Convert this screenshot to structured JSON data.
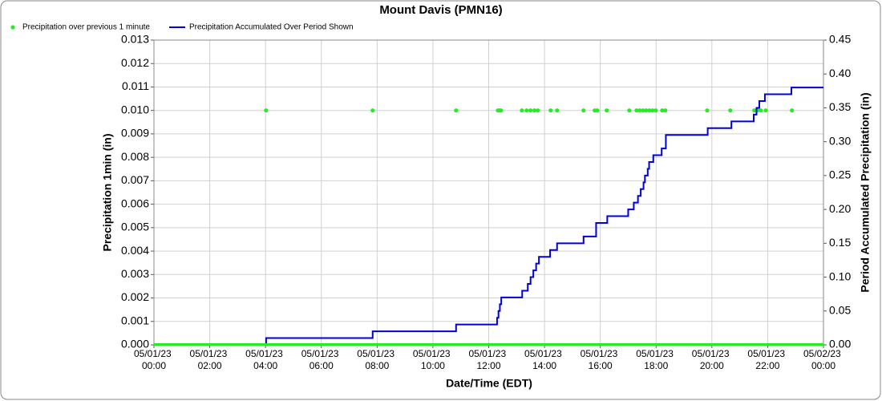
{
  "chart_data": {
    "type": "scatter",
    "title": "Mount Davis (PMN16)",
    "x_label": "Date/Time (EDT)",
    "y_label": "Precipitation 1min (in)",
    "y2_label": "Period Accumulated Precipitation (in)",
    "xlim": [
      0,
      24
    ],
    "xticks": [
      {
        "value": 0,
        "label": "05/01/23 00:00"
      },
      {
        "value": 2,
        "label": "05/01/23 02:00"
      },
      {
        "value": 4,
        "label": "05/01/23 04:00"
      },
      {
        "value": 6,
        "label": "05/01/23 06:00"
      },
      {
        "value": 8,
        "label": "05/01/23 08:00"
      },
      {
        "value": 10,
        "label": "05/01/23 10:00"
      },
      {
        "value": 12,
        "label": "05/01/23 12:00"
      },
      {
        "value": 14,
        "label": "05/01/23 14:00"
      },
      {
        "value": 16,
        "label": "05/01/23 16:00"
      },
      {
        "value": 18,
        "label": "05/01/23 18:00"
      },
      {
        "value": 20,
        "label": "05/01/23 20:00"
      },
      {
        "value": 22,
        "label": "05/01/23 22:00"
      },
      {
        "value": 24,
        "label": "05/02/23 00:00"
      }
    ],
    "ylim": [
      0,
      0.013
    ],
    "yticks": [
      {
        "value": 0,
        "label": "0.000"
      },
      {
        "value": 0.001,
        "label": "0.001"
      },
      {
        "value": 0.002,
        "label": "0.002"
      },
      {
        "value": 0.003,
        "label": "0.003"
      },
      {
        "value": 0.004,
        "label": "0.004"
      },
      {
        "value": 0.005,
        "label": "0.005"
      },
      {
        "value": 0.006,
        "label": "0.006"
      },
      {
        "value": 0.007,
        "label": "0.007"
      },
      {
        "value": 0.008,
        "label": "0.008"
      },
      {
        "value": 0.009,
        "label": "0.009"
      },
      {
        "value": 0.01,
        "label": "0.010"
      },
      {
        "value": 0.011,
        "label": "0.011"
      },
      {
        "value": 0.012,
        "label": "0.012"
      },
      {
        "value": 0.013,
        "label": "0.013"
      }
    ],
    "y2lim": [
      0,
      0.45
    ],
    "y2ticks": [
      {
        "value": 0,
        "label": "0.00"
      },
      {
        "value": 0.05,
        "label": "0.05"
      },
      {
        "value": 0.1,
        "label": "0.10"
      },
      {
        "value": 0.15,
        "label": "0.15"
      },
      {
        "value": 0.2,
        "label": "0.20"
      },
      {
        "value": 0.25,
        "label": "0.25"
      },
      {
        "value": 0.3,
        "label": "0.30"
      },
      {
        "value": 0.35,
        "label": "0.35"
      },
      {
        "value": 0.4,
        "label": "0.40"
      },
      {
        "value": 0.45,
        "label": "0.45"
      }
    ],
    "grid": true,
    "series": [
      {
        "name": "Precipitation over previous 1 minute",
        "color": "#22ee22",
        "type": "scatter",
        "x": [
          4.02,
          7.84,
          10.83,
          12.33,
          12.39,
          12.44,
          13.19,
          13.36,
          13.5,
          13.64,
          13.76,
          14.22,
          14.45,
          15.4,
          15.8,
          15.89,
          16.23,
          17.04,
          17.3,
          17.41,
          17.53,
          17.64,
          17.76,
          17.87,
          17.99,
          18.22,
          18.33,
          19.83,
          20.66,
          21.52,
          21.63,
          21.75,
          21.93,
          22.87
        ],
        "values": [
          0.01,
          0.01,
          0.01,
          0.01,
          0.01,
          0.01,
          0.01,
          0.01,
          0.01,
          0.01,
          0.01,
          0.01,
          0.01,
          0.01,
          0.01,
          0.01,
          0.01,
          0.01,
          0.01,
          0.01,
          0.01,
          0.01,
          0.01,
          0.01,
          0.01,
          0.01,
          0.01,
          0.01,
          0.01,
          0.01,
          0.01,
          0.01,
          0.01,
          0.01
        ]
      },
      {
        "name": "Precipitation Accumulated Over Period Shown",
        "color": "#0000dd",
        "type": "step",
        "axis": "y2",
        "x": [
          0,
          4.02,
          7.84,
          10.83,
          12.3,
          12.35,
          12.4,
          12.45,
          13.2,
          13.4,
          13.5,
          13.6,
          13.7,
          13.8,
          14.2,
          14.45,
          15.4,
          15.85,
          16.25,
          17.0,
          17.2,
          17.35,
          17.45,
          17.55,
          17.6,
          17.7,
          17.75,
          17.9,
          18.2,
          18.35,
          19.85,
          20.7,
          21.5,
          21.6,
          21.7,
          21.9,
          22.85,
          24
        ],
        "values": [
          0,
          0.01,
          0.02,
          0.03,
          0.04,
          0.05,
          0.06,
          0.07,
          0.08,
          0.09,
          0.1,
          0.11,
          0.12,
          0.13,
          0.14,
          0.15,
          0.16,
          0.18,
          0.19,
          0.2,
          0.21,
          0.22,
          0.23,
          0.24,
          0.25,
          0.26,
          0.27,
          0.28,
          0.29,
          0.31,
          0.32,
          0.33,
          0.34,
          0.35,
          0.36,
          0.37,
          0.38,
          0.38
        ]
      }
    ]
  }
}
